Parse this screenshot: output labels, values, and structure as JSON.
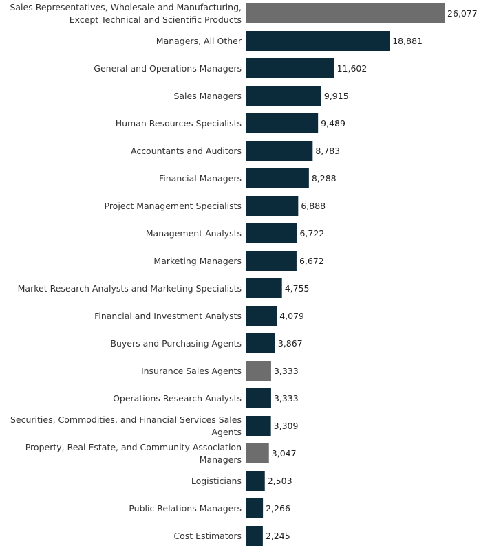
{
  "chart_data": {
    "type": "bar",
    "orientation": "horizontal",
    "title": "",
    "xlabel": "",
    "ylabel": "",
    "xlim": [
      0,
      26077
    ],
    "grid": false,
    "colors": {
      "default": "#0b2a3a",
      "highlight": "#6d6d6d"
    },
    "categories": [
      [
        "Sales Representatives, Wholesale and Manufacturing,",
        "Except Technical and Scientific Products"
      ],
      [
        "Managers, All Other"
      ],
      [
        "General and Operations Managers"
      ],
      [
        "Sales Managers"
      ],
      [
        "Human Resources Specialists"
      ],
      [
        "Accountants and Auditors"
      ],
      [
        "Financial Managers"
      ],
      [
        "Project Management Specialists"
      ],
      [
        "Management Analysts"
      ],
      [
        "Marketing Managers"
      ],
      [
        "Market Research Analysts and Marketing Specialists"
      ],
      [
        "Financial and Investment Analysts"
      ],
      [
        "Buyers and Purchasing Agents"
      ],
      [
        "Insurance Sales Agents"
      ],
      [
        "Operations Research Analysts"
      ],
      [
        "Securities, Commodities, and Financial Services Sales",
        "Agents"
      ],
      [
        "Property, Real Estate, and Community Association",
        "Managers"
      ],
      [
        "Logisticians"
      ],
      [
        "Public Relations Managers"
      ],
      [
        "Cost Estimators"
      ]
    ],
    "values": [
      26077,
      18881,
      11602,
      9915,
      9489,
      8783,
      8288,
      6888,
      6722,
      6672,
      4755,
      4079,
      3867,
      3333,
      3333,
      3309,
      3047,
      2503,
      2266,
      2245
    ],
    "value_labels": [
      "26,077",
      "18,881",
      "11,602",
      "9,915",
      "9,489",
      "8,783",
      "8,288",
      "6,888",
      "6,722",
      "6,672",
      "4,755",
      "4,079",
      "3,867",
      "3,333",
      "3,333",
      "3,309",
      "3,047",
      "2,503",
      "2,266",
      "2,245"
    ],
    "highlighted": [
      true,
      false,
      false,
      false,
      false,
      false,
      false,
      false,
      false,
      false,
      false,
      false,
      false,
      true,
      false,
      false,
      true,
      false,
      false,
      false
    ]
  }
}
